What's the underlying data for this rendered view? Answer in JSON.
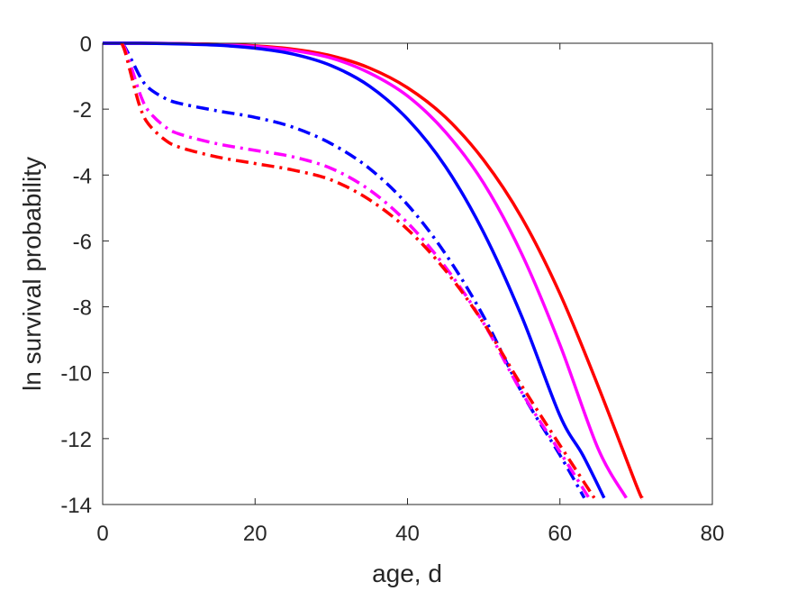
{
  "chart_data": {
    "type": "line",
    "title": "",
    "xlabel": "age, d",
    "ylabel": "ln survival probability",
    "xlim": [
      0,
      80
    ],
    "ylim": [
      -14,
      0
    ],
    "xticks": [
      0,
      20,
      40,
      60,
      80
    ],
    "yticks": [
      0,
      -2,
      -4,
      -6,
      -8,
      -10,
      -12,
      -14
    ],
    "xtick_labels": [
      "0",
      "20",
      "40",
      "60",
      "80"
    ],
    "ytick_labels": [
      "0",
      "-2",
      "-4",
      "-6",
      "-8",
      "-10",
      "-12",
      "-14"
    ],
    "grid": false,
    "legend": "none",
    "series": [
      {
        "color": "#ff0000",
        "style": "solid",
        "x": [
          0,
          5,
          10,
          15,
          20,
          25,
          30,
          35,
          40,
          45,
          50,
          55,
          60,
          65,
          70,
          70.8
        ],
        "y": [
          0,
          0,
          -0.01,
          -0.03,
          -0.08,
          -0.18,
          -0.38,
          -0.75,
          -1.35,
          -2.25,
          -3.55,
          -5.3,
          -7.6,
          -10.4,
          -13.4,
          -13.8
        ]
      },
      {
        "color": "#ff00ff",
        "style": "solid",
        "x": [
          0,
          5,
          10,
          15,
          20,
          25,
          30,
          35,
          40,
          45,
          50,
          55,
          60,
          65,
          68.7
        ],
        "y": [
          0,
          0,
          -0.01,
          -0.04,
          -0.1,
          -0.22,
          -0.45,
          -0.9,
          -1.6,
          -2.7,
          -4.25,
          -6.4,
          -9.15,
          -12.3,
          -13.8
        ]
      },
      {
        "color": "#0000ff",
        "style": "solid",
        "x": [
          0,
          5,
          10,
          15,
          20,
          25,
          30,
          35,
          40,
          45,
          50,
          55,
          60,
          63,
          65.8
        ],
        "y": [
          0,
          0,
          -0.02,
          -0.06,
          -0.15,
          -0.33,
          -0.68,
          -1.3,
          -2.3,
          -3.75,
          -5.75,
          -8.3,
          -11.3,
          -12.5,
          -13.8
        ]
      },
      {
        "color": "#0000ff",
        "style": "dashdot",
        "x": [
          2.5,
          3,
          4,
          5,
          6,
          8,
          10,
          15,
          20,
          25,
          30,
          35,
          40,
          45,
          50,
          55,
          60,
          63.2
        ],
        "y": [
          0,
          -0.15,
          -0.6,
          -1.05,
          -1.35,
          -1.65,
          -1.82,
          -2.05,
          -2.25,
          -2.55,
          -3.05,
          -3.8,
          -4.9,
          -6.4,
          -8.3,
          -10.6,
          -12.5,
          -13.8
        ]
      },
      {
        "color": "#ff00ff",
        "style": "dashdot",
        "x": [
          2.5,
          3,
          4,
          5,
          6,
          8,
          10,
          15,
          20,
          25,
          30,
          35,
          40,
          45,
          50,
          55,
          60,
          63.8
        ],
        "y": [
          0,
          -0.2,
          -0.9,
          -1.6,
          -2.05,
          -2.5,
          -2.75,
          -3.05,
          -3.25,
          -3.45,
          -3.8,
          -4.45,
          -5.45,
          -6.8,
          -8.5,
          -10.6,
          -12.4,
          -13.8
        ]
      },
      {
        "color": "#ff0000",
        "style": "dashdot",
        "x": [
          2.5,
          3,
          4,
          5,
          6,
          8,
          10,
          15,
          20,
          25,
          30,
          35,
          40,
          45,
          50,
          55,
          60,
          64.5
        ],
        "y": [
          0,
          -0.3,
          -1.2,
          -2.0,
          -2.45,
          -2.9,
          -3.15,
          -3.45,
          -3.65,
          -3.85,
          -4.15,
          -4.75,
          -5.65,
          -6.9,
          -8.5,
          -10.4,
          -12.2,
          -13.8
        ]
      }
    ]
  }
}
